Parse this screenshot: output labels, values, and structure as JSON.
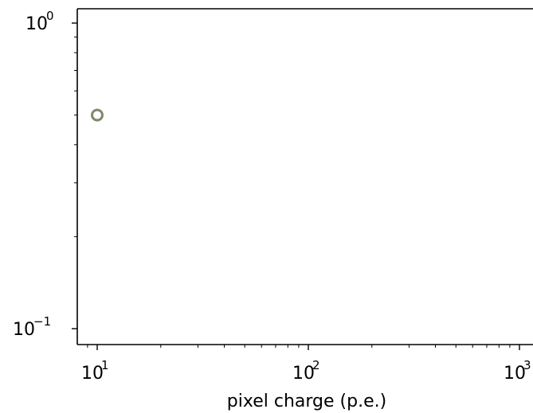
{
  "chart_data": {
    "type": "scatter",
    "title": "",
    "xlabel": "pixel charge (p.e.)",
    "ylabel": "",
    "x_scale": "log",
    "y_scale": "log",
    "xlim": [
      8.3,
      1000
    ],
    "ylim": [
      0.0935,
      1.12
    ],
    "x_ticks": [
      {
        "value": 10,
        "base": "10",
        "exp": "1"
      },
      {
        "value": 100,
        "base": "10",
        "exp": "2"
      },
      {
        "value": 1000,
        "base": "10",
        "exp": "3"
      }
    ],
    "y_ticks": [
      {
        "value": 1,
        "base": "10",
        "exp": "0"
      },
      {
        "value": 0.1,
        "base": "10",
        "exp": "−1"
      }
    ],
    "grid": false,
    "series": [
      {
        "marker": "hollow-circle",
        "color": "#7d8a6a",
        "points": [
          {
            "x": 10,
            "y": 0.5
          }
        ]
      }
    ]
  }
}
